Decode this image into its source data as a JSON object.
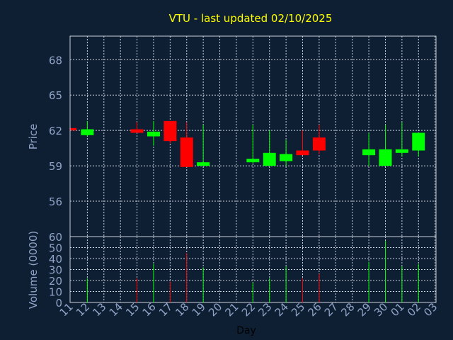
{
  "title": "VTU - last updated 02/10/2025",
  "colors": {
    "background": "#0f1f33",
    "up": "#00ff00",
    "down": "#ff0000",
    "grid": "#c8d0dc",
    "axis_text": "#8fa4c8",
    "title": "#ffff00",
    "frame": "#c8d0dc"
  },
  "chart_data": [
    {
      "type": "candlestick",
      "ylabel": "Price",
      "ylim": [
        53,
        70
      ],
      "yticks": [
        56,
        59,
        62,
        65,
        68
      ],
      "grid": true,
      "candles": [
        {
          "x": "11",
          "open": 62.2,
          "high": 62.2,
          "low": 62.0,
          "close": 62.0
        },
        {
          "x": "12",
          "open": 61.6,
          "high": 62.8,
          "low": 61.5,
          "close": 62.1
        },
        {
          "x": "15",
          "open": 62.1,
          "high": 62.7,
          "low": 61.8,
          "close": 61.8
        },
        {
          "x": "16",
          "open": 61.5,
          "high": 62.8,
          "low": 60.7,
          "close": 61.9
        },
        {
          "x": "17",
          "open": 62.8,
          "high": 62.8,
          "low": 60.9,
          "close": 61.1
        },
        {
          "x": "18",
          "open": 61.4,
          "high": 62.7,
          "low": 58.9,
          "close": 58.9
        },
        {
          "x": "19",
          "open": 59.0,
          "high": 62.5,
          "low": 59.0,
          "close": 59.3
        },
        {
          "x": "22",
          "open": 59.3,
          "high": 62.5,
          "low": 59.2,
          "close": 59.6
        },
        {
          "x": "23",
          "open": 59.0,
          "high": 62.0,
          "low": 59.0,
          "close": 60.1
        },
        {
          "x": "24",
          "open": 59.4,
          "high": 61.2,
          "low": 59.0,
          "close": 60.0
        },
        {
          "x": "25",
          "open": 60.3,
          "high": 62.0,
          "low": 59.9,
          "close": 59.9
        },
        {
          "x": "26",
          "open": 61.4,
          "high": 62.5,
          "low": 60.0,
          "close": 60.3
        },
        {
          "x": "29",
          "open": 59.9,
          "high": 61.8,
          "low": 59.0,
          "close": 60.4
        },
        {
          "x": "30",
          "open": 59.0,
          "high": 62.5,
          "low": 59.0,
          "close": 60.4
        },
        {
          "x": "01",
          "open": 60.1,
          "high": 62.7,
          "low": 59.8,
          "close": 60.4
        },
        {
          "x": "02",
          "open": 60.3,
          "high": 61.8,
          "low": 59.8,
          "close": 61.8
        }
      ]
    },
    {
      "type": "bar",
      "ylabel": "Volume (0000)",
      "xlabel": "Day",
      "ylim": [
        0,
        60
      ],
      "yticks": [
        0,
        10,
        20,
        30,
        40,
        50,
        60
      ],
      "grid": true,
      "categories": [
        "11",
        "12",
        "13",
        "14",
        "15",
        "16",
        "17",
        "18",
        "19",
        "20",
        "21",
        "22",
        "23",
        "24",
        "25",
        "26",
        "27",
        "28",
        "29",
        "30",
        "01",
        "02",
        "03"
      ],
      "bars": [
        {
          "x": "12",
          "value": 22,
          "dir": "up"
        },
        {
          "x": "15",
          "value": 22,
          "dir": "down"
        },
        {
          "x": "16",
          "value": 35,
          "dir": "up"
        },
        {
          "x": "17",
          "value": 19,
          "dir": "down"
        },
        {
          "x": "18",
          "value": 45,
          "dir": "down"
        },
        {
          "x": "19",
          "value": 32,
          "dir": "up"
        },
        {
          "x": "22",
          "value": 18,
          "dir": "up"
        },
        {
          "x": "23",
          "value": 22,
          "dir": "up"
        },
        {
          "x": "24",
          "value": 33,
          "dir": "up"
        },
        {
          "x": "25",
          "value": 22,
          "dir": "down"
        },
        {
          "x": "26",
          "value": 26,
          "dir": "down"
        },
        {
          "x": "29",
          "value": 37,
          "dir": "up"
        },
        {
          "x": "30",
          "value": 56,
          "dir": "up"
        },
        {
          "x": "01",
          "value": 33,
          "dir": "up"
        },
        {
          "x": "02",
          "value": 35,
          "dir": "up"
        }
      ]
    }
  ]
}
